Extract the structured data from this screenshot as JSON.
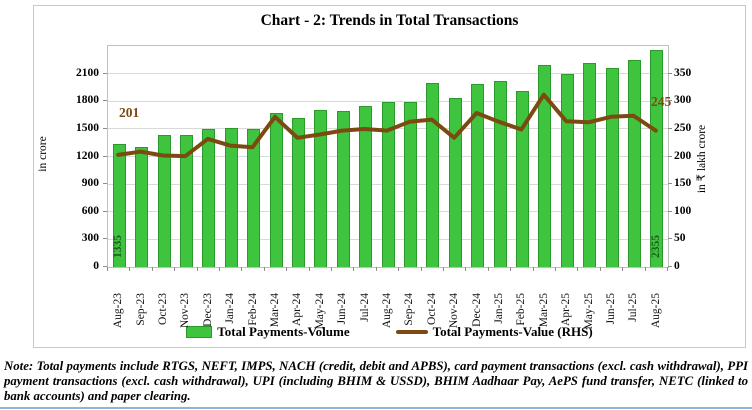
{
  "title": "Chart - 2: Trends in Total Transactions",
  "left_axis": {
    "title": "in crore",
    "ticks": [
      0,
      300,
      600,
      900,
      1200,
      1500,
      1800,
      2100
    ],
    "render_max": 2400
  },
  "right_axis": {
    "title": "in ₹ lakh crore",
    "ticks": [
      0,
      50,
      100,
      150,
      200,
      250,
      300,
      350
    ],
    "render_max": 400
  },
  "legend": {
    "volume_label": "Total Payments-Volume",
    "value_label": "Total Payments-Value (RHS)"
  },
  "annotations": {
    "first_volume_label": "1335",
    "last_volume_label": "2355",
    "first_value_label": "201",
    "last_value_label": "245"
  },
  "colors": {
    "bar_fill": "#3ec43e",
    "bar_border": "#2a9a2a",
    "line": "#7c4a10",
    "volume_label_text": "#1e5c1e",
    "gridline": "#d9d9d9"
  },
  "note": "Note: Total payments include RTGS, NEFT, IMPS, NACH (credit, debit and APBS), card payment transactions (excl. cash withdrawal), PPI payment transactions (excl. cash withdrawal), UPI (including BHIM & USSD), BHIM Aadhaar Pay, AePS fund transfer, NETC (linked to bank accounts) and paper clearing.",
  "chart_data": {
    "type": "bar",
    "title": "Chart - 2: Trends in Total Transactions",
    "categories": [
      "Aug-23",
      "Sep-23",
      "Oct-23",
      "Nov-23",
      "Dec-23",
      "Jan-24",
      "Feb-24",
      "Mar-24",
      "Apr-24",
      "May-24",
      "Jun-24",
      "Jul-24",
      "Aug-24",
      "Sep-24",
      "Oct-24",
      "Nov-24",
      "Dec-24",
      "Jan-25",
      "Feb-25",
      "Mar-25",
      "Apr-25",
      "May-25",
      "Jun-25",
      "Jul-25",
      "Aug-25"
    ],
    "series": [
      {
        "name": "Total Payments-Volume",
        "type": "bar",
        "axis": "left",
        "ylabel": "in crore",
        "ylim": [
          0,
          2100
        ],
        "values": [
          1335,
          1305,
          1430,
          1430,
          1500,
          1510,
          1500,
          1670,
          1620,
          1700,
          1690,
          1750,
          1790,
          1790,
          2000,
          1840,
          1990,
          2020,
          1910,
          2190,
          2100,
          2210,
          2160,
          2250,
          2355
        ]
      },
      {
        "name": "Total Payments-Value (RHS)",
        "type": "line",
        "axis": "right",
        "ylabel": "in ₹ lakh crore",
        "ylim": [
          0,
          350
        ],
        "values": [
          201,
          207,
          200,
          199,
          230,
          218,
          215,
          270,
          232,
          238,
          245,
          248,
          245,
          261,
          265,
          232,
          277,
          261,
          247,
          310,
          262,
          260,
          270,
          272,
          245
        ]
      }
    ],
    "legend_position": "bottom",
    "grid": "horizontal"
  }
}
